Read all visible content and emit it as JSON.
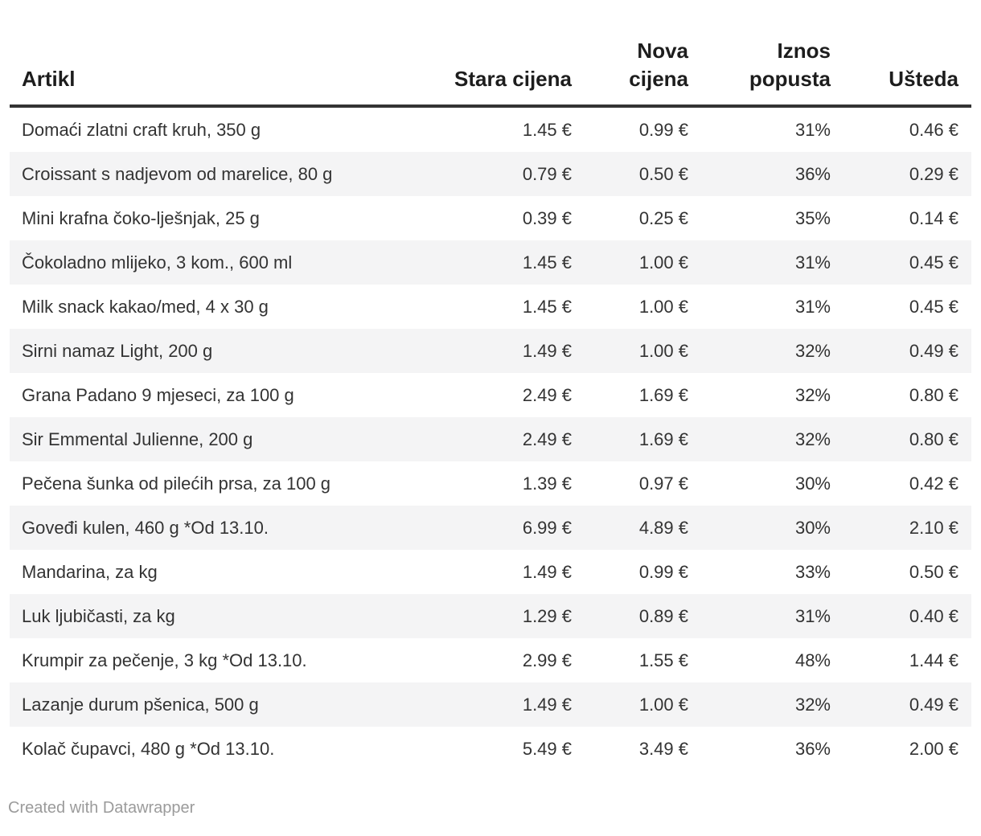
{
  "chart_data": {
    "type": "table",
    "columns": [
      {
        "key": "artikl",
        "label": "Artikl",
        "align": "left"
      },
      {
        "key": "stara-cijena",
        "label": "Stara cijena",
        "align": "right"
      },
      {
        "key": "nova-cijena",
        "label": "Nova cijena",
        "align": "right"
      },
      {
        "key": "iznos-popusta",
        "label": "Iznos popusta",
        "align": "right"
      },
      {
        "key": "usteda",
        "label": "Ušteda",
        "align": "right"
      }
    ],
    "rows": [
      [
        "Domaći zlatni craft kruh, 350 g",
        "1.45 €",
        "0.99 €",
        "31%",
        "0.46 €"
      ],
      [
        "Croissant s nadjevom od marelice, 80 g",
        "0.79 €",
        "0.50 €",
        "36%",
        "0.29 €"
      ],
      [
        "Mini krafna čoko-lješnjak, 25 g",
        "0.39 €",
        "0.25 €",
        "35%",
        "0.14 €"
      ],
      [
        "Čokoladno mlijeko, 3 kom., 600 ml",
        "1.45 €",
        "1.00 €",
        "31%",
        "0.45 €"
      ],
      [
        "Milk snack kakao/med, 4 x 30 g",
        "1.45 €",
        "1.00 €",
        "31%",
        "0.45 €"
      ],
      [
        "Sirni namaz Light, 200 g",
        "1.49 €",
        "1.00 €",
        "32%",
        "0.49 €"
      ],
      [
        "Grana Padano 9 mjeseci, za 100 g",
        "2.49 €",
        "1.69 €",
        "32%",
        "0.80 €"
      ],
      [
        "Sir Emmental Julienne, 200 g",
        "2.49 €",
        "1.69 €",
        "32%",
        "0.80 €"
      ],
      [
        "Pečena šunka od pilećih prsa, za 100 g",
        "1.39 €",
        "0.97 €",
        "30%",
        "0.42 €"
      ],
      [
        "Goveđi kulen, 460 g *Od 13.10.",
        "6.99 €",
        "4.89 €",
        "30%",
        "2.10 €"
      ],
      [
        "Mandarina, za kg",
        "1.49 €",
        "0.99 €",
        "33%",
        "0.50 €"
      ],
      [
        "Luk ljubičasti, za kg",
        "1.29 €",
        "0.89 €",
        "31%",
        "0.40 €"
      ],
      [
        "Krumpir za pečenje, 3 kg *Od 13.10.",
        "2.99 €",
        "1.55 €",
        "48%",
        "1.44 €"
      ],
      [
        "Lazanje durum pšenica, 500 g",
        "1.49 €",
        "1.00 €",
        "32%",
        "0.49 €"
      ],
      [
        "Kolač čupavci, 480 g *Od 13.10.",
        "5.49 €",
        "3.49 €",
        "36%",
        "2.00 €"
      ]
    ],
    "layout_hints": {
      "zebra_striping": true,
      "striped_rows": "even",
      "header_rule": "thick-bottom-border",
      "grid": "off"
    }
  },
  "footer": {
    "credit": "Created with Datawrapper"
  },
  "colors": {
    "background": "#ffffff",
    "header_text": "#1d1d1d",
    "body_text": "#333333",
    "header_border": "#333333",
    "row_stripe": "#f4f4f5",
    "credit_text": "#9b9b9b"
  }
}
